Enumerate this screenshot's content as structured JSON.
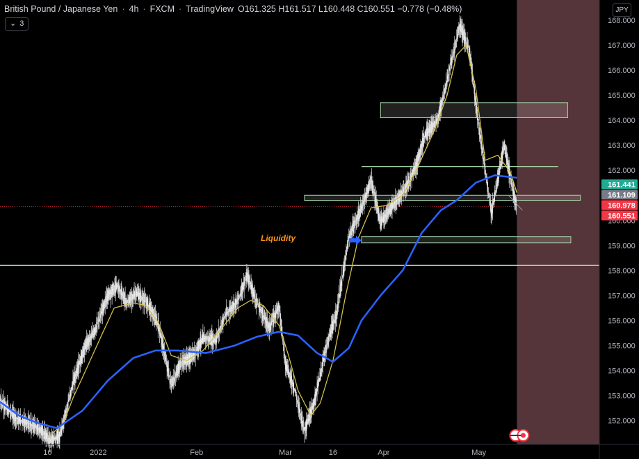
{
  "header": {
    "symbol": "British Pound / Japanese Yen",
    "interval": "4h",
    "exchange": "FXCM",
    "source": "TradingView",
    "ohlc": "O161.325 H161.517 L160.448 C160.551 −0.778 (−0.48%)"
  },
  "indicators_button": {
    "count": "3"
  },
  "currency_button": "JPY",
  "annotation": {
    "text": "Liquidity",
    "color": "#f7931a"
  },
  "colors": {
    "background": "#000000",
    "price": "#c8c8c8",
    "ma_fast": "#d4c04a",
    "ma_slow": "#2962ff",
    "level_line": "#a5d6a7",
    "zone_fill": "#e8e8e8",
    "future_zone": "#5d3a3f",
    "badge_ma": "#22ab94",
    "badge_gray": "#787b86",
    "badge_red": "#f23645",
    "arrow": "#2962ff"
  },
  "chart_data": {
    "type": "line",
    "title": "British Pound / Japanese Yen · 4h · FXCM",
    "y_axis": {
      "min": 151.05,
      "max": 168.8,
      "ticks": [
        152.0,
        153.0,
        154.0,
        155.0,
        156.0,
        157.0,
        158.0,
        159.0,
        160.0,
        161.0,
        162.0,
        163.0,
        164.0,
        165.0,
        166.0,
        167.0,
        168.0
      ],
      "tick_labels": [
        "152.000",
        "153.000",
        "154.000",
        "155.000",
        "156.000",
        "157.000",
        "158.000",
        "159.000",
        "160.000",
        "161.000",
        "162.000",
        "163.000",
        "164.000",
        "165.000",
        "166.000",
        "167.000",
        "168.000"
      ]
    },
    "x_axis": {
      "labels": [
        "16",
        "2022",
        "Feb",
        "Mar",
        "16",
        "Apr",
        "May"
      ],
      "label_dates": [
        "2021-12-16",
        "2022-01-01",
        "2022-02-01",
        "2022-03-01",
        "2022-03-16",
        "2022-04-01",
        "2022-05-01"
      ],
      "range": [
        "2021-12-01",
        "2022-06-08"
      ],
      "last_bar_date": "2022-05-13"
    },
    "series": [
      {
        "name": "GBPJPY",
        "kind": "price",
        "points": [
          [
            "2021-12-01",
            152.8
          ],
          [
            "2021-12-06",
            152.1
          ],
          [
            "2021-12-10",
            151.9
          ],
          [
            "2021-12-14",
            151.6
          ],
          [
            "2021-12-17",
            151.2
          ],
          [
            "2021-12-20",
            151.4
          ],
          [
            "2021-12-24",
            153.5
          ],
          [
            "2021-12-28",
            155.0
          ],
          [
            "2021-12-31",
            155.6
          ],
          [
            "2022-01-04",
            157.0
          ],
          [
            "2022-01-07",
            157.4
          ],
          [
            "2022-01-10",
            156.7
          ],
          [
            "2022-01-13",
            157.1
          ],
          [
            "2022-01-17",
            156.6
          ],
          [
            "2022-01-20",
            155.8
          ],
          [
            "2022-01-24",
            153.4
          ],
          [
            "2022-01-27",
            154.3
          ],
          [
            "2022-01-31",
            154.6
          ],
          [
            "2022-02-03",
            155.3
          ],
          [
            "2022-02-07",
            155.2
          ],
          [
            "2022-02-10",
            156.2
          ],
          [
            "2022-02-14",
            156.8
          ],
          [
            "2022-02-17",
            157.8
          ],
          [
            "2022-02-20",
            156.7
          ],
          [
            "2022-02-24",
            155.7
          ],
          [
            "2022-02-27",
            156.6
          ],
          [
            "2022-03-01",
            154.3
          ],
          [
            "2022-03-04",
            153.2
          ],
          [
            "2022-03-07",
            151.6
          ],
          [
            "2022-03-10",
            152.7
          ],
          [
            "2022-03-14",
            155.0
          ],
          [
            "2022-03-17",
            156.2
          ],
          [
            "2022-03-21",
            159.3
          ],
          [
            "2022-03-25",
            160.5
          ],
          [
            "2022-03-28",
            161.6
          ],
          [
            "2022-03-31",
            159.9
          ],
          [
            "2022-04-04",
            160.6
          ],
          [
            "2022-04-08",
            161.3
          ],
          [
            "2022-04-11",
            162.1
          ],
          [
            "2022-04-14",
            163.4
          ],
          [
            "2022-04-18",
            164.0
          ],
          [
            "2022-04-21",
            165.6
          ],
          [
            "2022-04-25",
            167.8
          ],
          [
            "2022-04-28",
            166.8
          ],
          [
            "2022-05-01",
            163.7
          ],
          [
            "2022-05-05",
            160.3
          ],
          [
            "2022-05-09",
            163.0
          ],
          [
            "2022-05-12",
            161.0
          ],
          [
            "2022-05-13",
            160.55
          ]
        ]
      },
      {
        "name": "MA fast",
        "kind": "ma_fast",
        "points": [
          [
            "2021-12-16",
            151.3
          ],
          [
            "2021-12-21",
            151.9
          ],
          [
            "2021-12-24",
            152.9
          ],
          [
            "2021-12-28",
            154.0
          ],
          [
            "2022-01-02",
            155.4
          ],
          [
            "2022-01-06",
            156.5
          ],
          [
            "2022-01-12",
            156.7
          ],
          [
            "2022-01-16",
            156.6
          ],
          [
            "2022-01-20",
            155.9
          ],
          [
            "2022-01-24",
            154.6
          ],
          [
            "2022-01-29",
            154.4
          ],
          [
            "2022-02-03",
            154.8
          ],
          [
            "2022-02-09",
            155.7
          ],
          [
            "2022-02-14",
            156.5
          ],
          [
            "2022-02-18",
            156.8
          ],
          [
            "2022-02-22",
            156.6
          ],
          [
            "2022-02-27",
            155.8
          ],
          [
            "2022-03-02",
            154.6
          ],
          [
            "2022-03-05",
            153.2
          ],
          [
            "2022-03-09",
            152.2
          ],
          [
            "2022-03-12",
            152.7
          ],
          [
            "2022-03-16",
            154.4
          ],
          [
            "2022-03-20",
            157.0
          ],
          [
            "2022-03-24",
            159.3
          ],
          [
            "2022-03-28",
            160.5
          ],
          [
            "2022-04-02",
            160.6
          ],
          [
            "2022-04-07",
            161.0
          ],
          [
            "2022-04-12",
            162.2
          ],
          [
            "2022-04-17",
            163.6
          ],
          [
            "2022-04-21",
            165.0
          ],
          [
            "2022-04-24",
            166.6
          ],
          [
            "2022-04-27",
            167.0
          ],
          [
            "2022-04-30",
            165.3
          ],
          [
            "2022-05-03",
            162.4
          ],
          [
            "2022-05-07",
            162.6
          ],
          [
            "2022-05-11",
            161.9
          ],
          [
            "2022-05-13",
            161.1
          ]
        ]
      },
      {
        "name": "MA slow",
        "kind": "ma_slow",
        "points": [
          [
            "2021-12-01",
            152.75
          ],
          [
            "2021-12-07",
            152.2
          ],
          [
            "2021-12-13",
            151.9
          ],
          [
            "2021-12-19",
            151.7
          ],
          [
            "2021-12-27",
            152.4
          ],
          [
            "2022-01-04",
            153.6
          ],
          [
            "2022-01-12",
            154.5
          ],
          [
            "2022-01-19",
            154.8
          ],
          [
            "2022-01-26",
            154.8
          ],
          [
            "2022-02-04",
            154.7
          ],
          [
            "2022-02-13",
            155.0
          ],
          [
            "2022-02-20",
            155.35
          ],
          [
            "2022-02-27",
            155.55
          ],
          [
            "2022-03-05",
            155.4
          ],
          [
            "2022-03-11",
            154.7
          ],
          [
            "2022-03-16",
            154.35
          ],
          [
            "2022-03-21",
            154.9
          ],
          [
            "2022-03-25",
            156.0
          ],
          [
            "2022-03-31",
            157.0
          ],
          [
            "2022-04-07",
            158.0
          ],
          [
            "2022-04-13",
            159.5
          ],
          [
            "2022-04-19",
            160.4
          ],
          [
            "2022-04-24",
            160.8
          ],
          [
            "2022-04-30",
            161.5
          ],
          [
            "2022-05-06",
            161.8
          ],
          [
            "2022-05-13",
            161.7
          ]
        ]
      }
    ],
    "horizontal_lines": [
      {
        "y": 158.2,
        "x_start": "2021-12-01",
        "x_end": "2022-06-08",
        "color": "#a5d6a7"
      },
      {
        "y": 162.15,
        "x_start": "2022-03-25",
        "x_end": "2022-05-26",
        "color": "#a5d6a7"
      }
    ],
    "zones": [
      {
        "y_low": 164.1,
        "y_high": 164.7,
        "x_start": "2022-03-31",
        "x_end": "2022-05-29"
      },
      {
        "y_low": 160.8,
        "y_high": 161.0,
        "x_start": "2022-03-07",
        "x_end": "2022-06-02"
      },
      {
        "y_low": 159.1,
        "y_high": 159.35,
        "x_start": "2022-03-25",
        "x_end": "2022-05-30"
      }
    ],
    "annotation_arrow": {
      "x": "2022-03-25",
      "y": 159.2
    },
    "annotation_label": {
      "x": "2022-03-15",
      "y": 159.25
    },
    "future_zone": {
      "x_start": "2022-05-13",
      "x_end": "2022-06-08"
    },
    "reference_line": {
      "y": 160.551,
      "style": "dotted",
      "color": "#f23645"
    },
    "price_badges": [
      {
        "value": 161.441,
        "label": "161.441",
        "color_key": "badge_ma"
      },
      {
        "value": 161.109,
        "label": "161.109",
        "color_key": "badge_gray"
      },
      {
        "value": 160.978,
        "label": "160.978",
        "color_key": "badge_red"
      },
      {
        "value": 160.551,
        "label": "160.551",
        "color_key": "badge_red"
      }
    ]
  }
}
